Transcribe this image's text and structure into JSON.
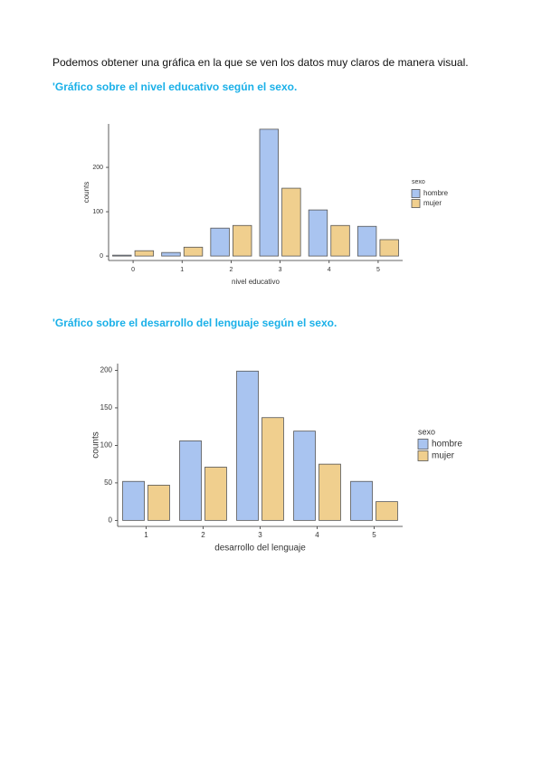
{
  "intro": "Podemos obtener una gráfica en la que se ven los datos muy claros de manera visual.",
  "headings": [
    "'Gráfico sobre el nivel educativo según el sexo.",
    "'Gráfico sobre el desarrollo del lenguaje según el sexo."
  ],
  "chart_data": [
    {
      "type": "bar",
      "x_label": "nivel educativo",
      "y_label": "counts",
      "categories": [
        "0",
        "1",
        "2",
        "3",
        "4",
        "5"
      ],
      "series": [
        {
          "name": "hombre",
          "color": "#a9c4f0",
          "values": [
            2,
            8,
            63,
            286,
            104,
            67
          ]
        },
        {
          "name": "mujer",
          "color": "#f0cf8e",
          "values": [
            12,
            20,
            69,
            153,
            69,
            37
          ]
        }
      ],
      "ylim": [
        -10,
        298
      ],
      "yticks": [
        0,
        100,
        200
      ],
      "legend_title": "sexo",
      "legend": "right",
      "grid": false
    },
    {
      "type": "bar",
      "x_label": "desarrollo del lenguaje",
      "y_label": "counts",
      "categories": [
        "1",
        "2",
        "3",
        "4",
        "5"
      ],
      "series": [
        {
          "name": "hombre",
          "color": "#a9c4f0",
          "values": [
            52,
            106,
            199,
            119,
            52
          ]
        },
        {
          "name": "mujer",
          "color": "#f0cf8e",
          "values": [
            47,
            71,
            137,
            75,
            25
          ]
        }
      ],
      "ylim": [
        -8,
        209
      ],
      "yticks": [
        0,
        50,
        100,
        150,
        200
      ],
      "legend_title": "sexo",
      "legend": "right",
      "grid": false
    }
  ]
}
